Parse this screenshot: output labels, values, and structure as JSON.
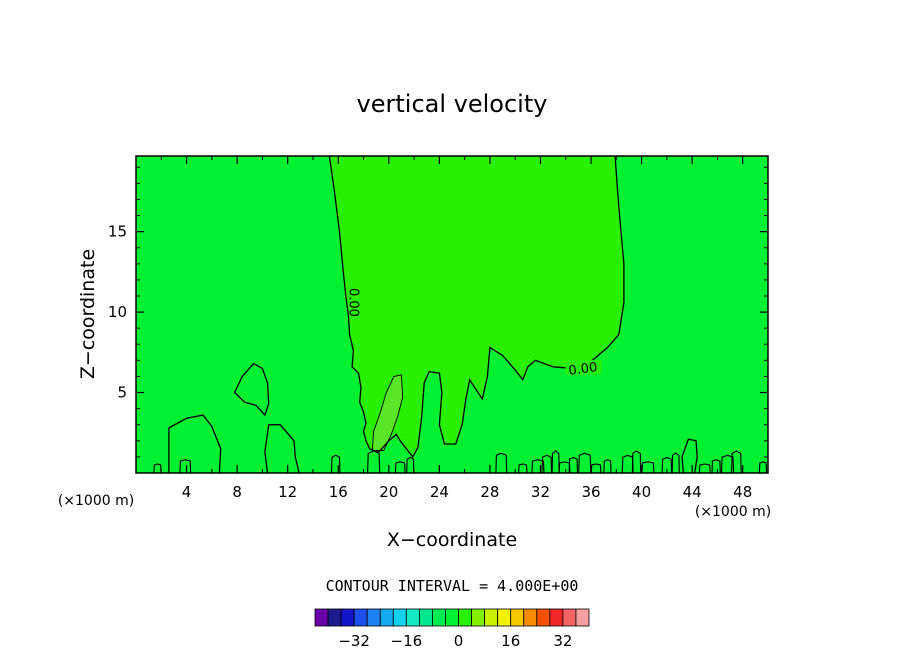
{
  "chart_data": {
    "type": "contour",
    "title": "vertical velocity",
    "xlabel": "X−coordinate",
    "ylabel": "Z−coordinate",
    "x_unit": "(×1000 m)",
    "z_unit": "(×1000 m)",
    "xlim": [
      0,
      50
    ],
    "ylim": [
      0,
      19.7
    ],
    "x_ticks": [
      4,
      8,
      12,
      16,
      20,
      24,
      28,
      32,
      36,
      40,
      44,
      48
    ],
    "y_ticks": [
      5,
      10,
      15
    ],
    "contour_interval_text": "CONTOUR INTERVAL = 4.000E+00",
    "contour_labels": [
      "0.00",
      "0.00"
    ],
    "contour_lines": [
      {
        "level": 0,
        "label": "0.00",
        "points": [
          [
            15.3,
            19.7
          ],
          [
            15.7,
            17.5
          ],
          [
            16.1,
            15.0
          ],
          [
            16.4,
            12.5
          ],
          [
            16.6,
            11.0
          ],
          [
            16.8,
            9.8
          ],
          [
            16.9,
            8.6
          ],
          [
            17.2,
            7.6
          ],
          [
            17.1,
            6.6
          ],
          [
            17.6,
            6.2
          ],
          [
            17.8,
            5.3
          ],
          [
            17.7,
            4.4
          ],
          [
            18.0,
            3.8
          ],
          [
            18.2,
            3.1
          ],
          [
            18.0,
            2.6
          ],
          [
            18.2,
            2.0
          ],
          [
            18.5,
            1.5
          ],
          [
            19.2,
            1.3
          ],
          [
            20.0,
            2.0
          ],
          [
            20.6,
            2.4
          ],
          [
            20.9,
            2.0
          ],
          [
            21.3,
            1.6
          ],
          [
            21.9,
            1.0
          ],
          [
            22.3,
            1.6
          ],
          [
            22.6,
            3.5
          ],
          [
            22.8,
            5.6
          ],
          [
            23.2,
            6.3
          ],
          [
            24.0,
            6.2
          ],
          [
            24.2,
            5.0
          ],
          [
            24.0,
            3.0
          ],
          [
            24.4,
            1.8
          ],
          [
            25.3,
            1.8
          ],
          [
            25.8,
            3.0
          ],
          [
            26.1,
            4.6
          ],
          [
            26.4,
            5.8
          ],
          [
            26.8,
            5.3
          ],
          [
            27.4,
            4.6
          ],
          [
            27.8,
            6.0
          ],
          [
            28.0,
            7.8
          ],
          [
            29.0,
            7.3
          ],
          [
            30.0,
            6.4
          ],
          [
            30.6,
            5.8
          ],
          [
            31.0,
            6.6
          ],
          [
            31.6,
            7.0
          ],
          [
            33.0,
            6.6
          ],
          [
            34.5,
            6.5
          ],
          [
            36.1,
            7.0
          ],
          [
            37.3,
            7.8
          ],
          [
            38.2,
            8.6
          ],
          [
            38.6,
            10.6
          ],
          [
            38.6,
            13.0
          ],
          [
            38.3,
            15.6
          ],
          [
            38.1,
            17.5
          ],
          [
            37.9,
            19.7
          ]
        ]
      },
      {
        "level": 4,
        "label": "",
        "points": [
          [
            18.7,
            1.4
          ],
          [
            18.8,
            2.6
          ],
          [
            19.3,
            3.7
          ],
          [
            19.8,
            5.0
          ],
          [
            20.4,
            6.0
          ],
          [
            21.0,
            6.1
          ],
          [
            21.1,
            4.7
          ],
          [
            20.7,
            3.5
          ],
          [
            20.2,
            2.4
          ],
          [
            19.6,
            1.4
          ],
          [
            18.7,
            1.4
          ]
        ]
      },
      {
        "level": 0,
        "label": "",
        "points": [
          [
            7.8,
            5.0
          ],
          [
            8.4,
            6.0
          ],
          [
            9.3,
            6.8
          ],
          [
            10.0,
            6.5
          ],
          [
            10.4,
            5.6
          ],
          [
            10.5,
            4.3
          ],
          [
            10.2,
            3.6
          ],
          [
            9.5,
            4.2
          ],
          [
            8.6,
            4.4
          ],
          [
            7.8,
            5.0
          ]
        ]
      },
      {
        "level": 0,
        "label": "",
        "points": [
          [
            2.6,
            0
          ],
          [
            2.6,
            1.5
          ],
          [
            2.6,
            2.8
          ],
          [
            4.0,
            3.4
          ],
          [
            5.3,
            3.6
          ],
          [
            6.0,
            2.9
          ],
          [
            6.7,
            1.5
          ],
          [
            6.6,
            0
          ]
        ]
      },
      {
        "level": 0,
        "label": "",
        "points": [
          [
            10.4,
            0
          ],
          [
            10.2,
            1.3
          ],
          [
            10.5,
            3.0
          ],
          [
            11.4,
            3.0
          ],
          [
            12.5,
            2.0
          ],
          [
            12.6,
            1.0
          ],
          [
            12.9,
            0
          ]
        ]
      },
      {
        "level": 0,
        "label": "",
        "points": [
          [
            43.3,
            0
          ],
          [
            43.2,
            1.0
          ],
          [
            43.7,
            2.1
          ],
          [
            44.3,
            2.0
          ],
          [
            44.4,
            1.0
          ],
          [
            44.2,
            0
          ]
        ]
      }
    ],
    "colorbar": {
      "tick_labels": [
        "−32",
        "−16",
        "0",
        "16",
        "32"
      ],
      "tick_values": [
        -32,
        -16,
        0,
        16,
        32
      ],
      "bin_edges": [
        -40,
        -36,
        -32,
        -28,
        -24,
        -20,
        -16,
        -12,
        -8,
        -4,
        0,
        4,
        8,
        12,
        16,
        20,
        24,
        28,
        32,
        36
      ],
      "colors": [
        "#6a00a8",
        "#1c1c8c",
        "#1414c8",
        "#1e50f0",
        "#1e82f5",
        "#14aaf0",
        "#14d2eb",
        "#14ebc3",
        "#00e68c",
        "#00eb50",
        "#00f032",
        "#28f000",
        "#82f000",
        "#c8f000",
        "#f0f000",
        "#f5c800",
        "#f58c00",
        "#f55000",
        "#f02828",
        "#f56464",
        "#f5a0a0"
      ]
    },
    "fill_colors": {
      "background": "#00f032",
      "zero_to_four": "#28f000",
      "four_to_eight": "#5ae628"
    },
    "grid": false
  }
}
